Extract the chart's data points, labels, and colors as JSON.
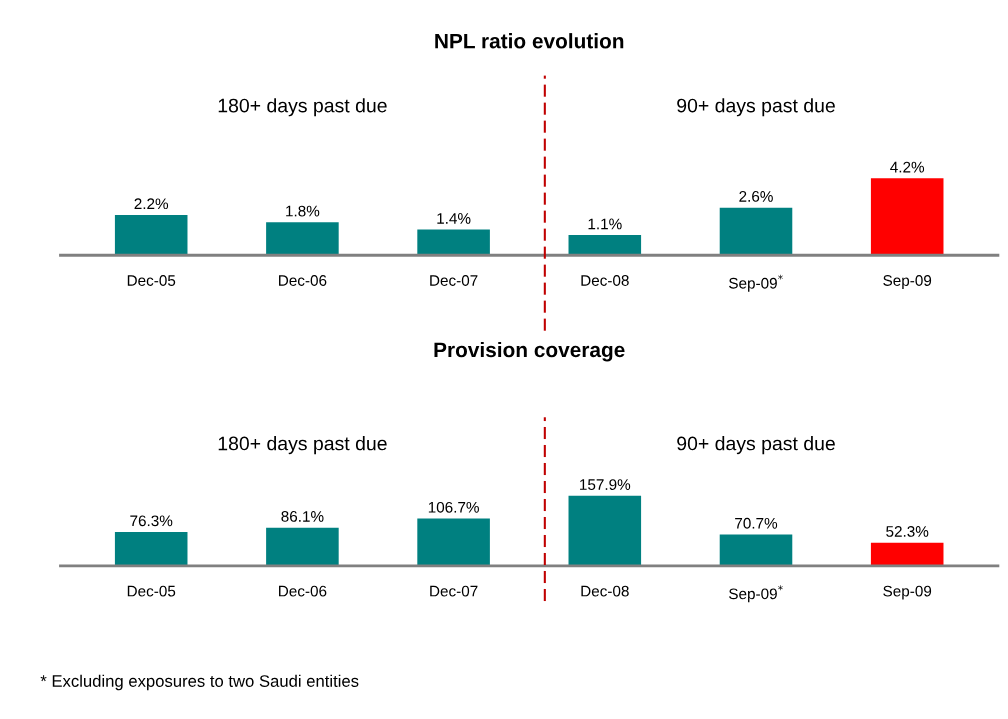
{
  "chart_data": [
    {
      "type": "bar",
      "title": "NPL ratio evolution",
      "categories": [
        "Dec-05",
        "Dec-06",
        "Dec-07",
        "Dec-08",
        "Sep-09$^{*}$",
        "Sep-09"
      ],
      "values": [
        2.2,
        1.8,
        1.4,
        1.1,
        2.6,
        4.2
      ],
      "colors": [
        "#008080",
        "#008080",
        "#008080",
        "#008080",
        "#008080",
        "#ff0000"
      ],
      "value_labels": [
        "2.2%",
        "1.8%",
        "1.4%",
        "1.1%",
        "2.6%",
        "4.2%"
      ],
      "annotations": [
        "180+ days past due",
        "90+ days past due"
      ],
      "tick_labels": "x",
      "grid": false,
      "legend": false
    },
    {
      "type": "bar",
      "title": "Provision coverage",
      "categories": [
        "Dec-05",
        "Dec-06",
        "Dec-07",
        "Dec-08",
        "Sep-09$^{*}$",
        "Sep-09"
      ],
      "values": [
        76.3,
        86.1,
        106.7,
        157.9,
        70.7,
        52.3
      ],
      "colors": [
        "#008080",
        "#008080",
        "#008080",
        "#008080",
        "#008080",
        "#ff0000"
      ],
      "value_labels": [
        "76.3%",
        "86.1%",
        "106.7%",
        "157.9%",
        "70.7%",
        "52.3%"
      ],
      "annotations": [
        "180+ days past due",
        "90+ days past due",
        "* Excluding exposures to two Saudi entities"
      ],
      "tick_labels": "x",
      "grid": false,
      "legend": false
    }
  ]
}
